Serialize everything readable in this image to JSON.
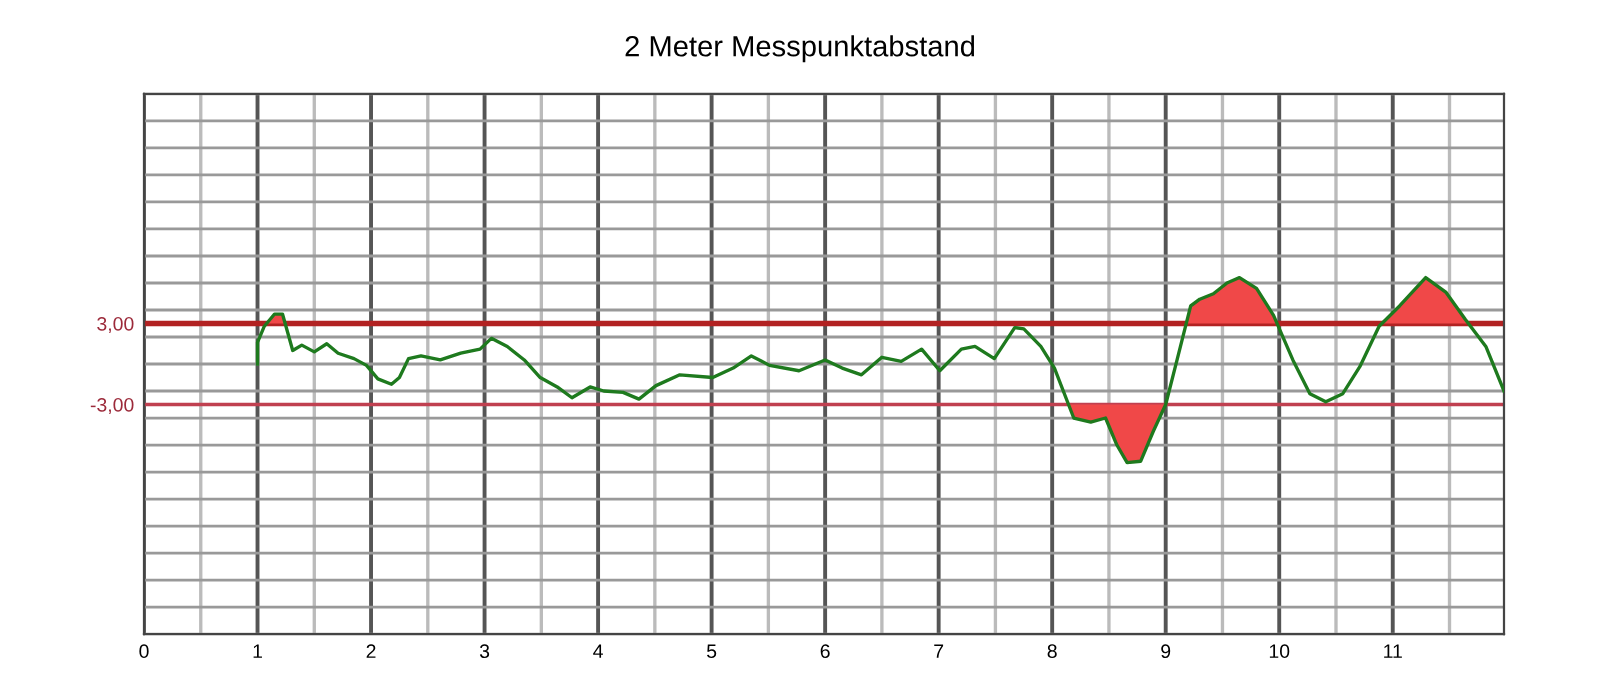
{
  "chart_data": {
    "type": "line",
    "title": "2 Meter Messpunktabstand",
    "series": [
      {
        "color": "#1e7a1e",
        "x": [
          1.0,
          1.0,
          1.06,
          1.15,
          1.22,
          1.31,
          1.39,
          1.5,
          1.61,
          1.71,
          1.85,
          1.96,
          2.06,
          2.18,
          2.25,
          2.33,
          2.44,
          2.61,
          2.79,
          2.96,
          3.06,
          3.2,
          3.35,
          3.49,
          3.64,
          3.77,
          3.93,
          4.05,
          4.22,
          4.36,
          4.51,
          4.72,
          5.01,
          5.19,
          5.35,
          5.51,
          5.77,
          6.0,
          6.15,
          6.32,
          6.5,
          6.67,
          6.85,
          7.01,
          7.2,
          7.32,
          7.49,
          7.67,
          7.75,
          7.9,
          8.02,
          8.19,
          8.34,
          8.47,
          8.57,
          8.66,
          8.78,
          8.89,
          9.0,
          9.1,
          9.22,
          9.3,
          9.42,
          9.54,
          9.65,
          9.8,
          9.95,
          10.12,
          10.27,
          10.41,
          10.56,
          10.71,
          10.88,
          11.06,
          11.29,
          11.47,
          11.64,
          11.82,
          11.98
        ],
        "values": [
          0,
          1.6,
          2.8,
          3.7,
          3.7,
          1.0,
          1.4,
          0.9,
          1.5,
          0.8,
          0.4,
          -0.1,
          -1.1,
          -1.5,
          -1.0,
          0.4,
          0.6,
          0.3,
          0.8,
          1.1,
          1.9,
          1.3,
          0.3,
          -1.0,
          -1.7,
          -2.5,
          -1.7,
          -2.0,
          -2.1,
          -2.6,
          -1.6,
          -0.8,
          -1.0,
          -0.3,
          0.6,
          -0.1,
          -0.5,
          0.3,
          -0.3,
          -0.8,
          0.5,
          0.2,
          1.1,
          -0.5,
          1.1,
          1.3,
          0.4,
          2.7,
          2.6,
          1.3,
          -0.3,
          -4.0,
          -4.3,
          -4.0,
          -6.0,
          -7.3,
          -7.2,
          -5.0,
          -3.0,
          0.3,
          4.3,
          4.8,
          5.2,
          6.0,
          6.4,
          5.6,
          3.6,
          0.3,
          -2.2,
          -2.8,
          -2.2,
          -0.2,
          2.8,
          4.3,
          6.4,
          5.3,
          3.3,
          1.3,
          -2.0
        ]
      }
    ],
    "xlim": [
      0,
      11.98
    ],
    "xticks": [
      0,
      {
        "value": 0.5,
        "label": null
      },
      1,
      {
        "value": 1.5,
        "label": null
      },
      2,
      {
        "value": 2.5,
        "label": null
      },
      3,
      {
        "value": 3.5,
        "label": null
      },
      4,
      {
        "value": 4.5,
        "label": null
      },
      5,
      {
        "value": 5.5,
        "label": null
      },
      6,
      {
        "value": 6.5,
        "label": null
      },
      7,
      {
        "value": 7.5,
        "label": null
      },
      8,
      {
        "value": 8.5,
        "label": null
      },
      9,
      {
        "value": 9.5,
        "label": null
      },
      10,
      {
        "value": 10.5,
        "label": null
      },
      11,
      {
        "value": 11.5,
        "label": null
      }
    ],
    "ylim": [
      -20,
      20
    ],
    "yticks": [
      {
        "value": -20,
        "label": null
      },
      {
        "value": -18,
        "label": null
      },
      {
        "value": -16,
        "label": null
      },
      {
        "value": -14,
        "label": null
      },
      {
        "value": -12,
        "label": null
      },
      {
        "value": -10,
        "label": null
      },
      {
        "value": -8,
        "label": null
      },
      {
        "value": -6,
        "label": null
      },
      {
        "value": -4,
        "label": null
      },
      {
        "value": -3,
        "label": "-3,00"
      },
      {
        "value": -2,
        "label": null
      },
      {
        "value": 0,
        "label": null
      },
      {
        "value": 2,
        "label": null
      },
      {
        "value": 3,
        "label": "3,00"
      },
      {
        "value": 4,
        "label": null
      },
      {
        "value": 6,
        "label": null
      },
      {
        "value": 8,
        "label": null
      },
      {
        "value": 10,
        "label": null
      },
      {
        "value": 12,
        "label": null
      },
      {
        "value": 14,
        "label": null
      },
      {
        "value": 16,
        "label": null
      },
      {
        "value": 18,
        "label": null
      },
      {
        "value": 20,
        "label": null
      }
    ],
    "ref_lines": [
      {
        "axis": "y",
        "value": 3,
        "color": "#b22222"
      },
      {
        "axis": "y",
        "value": -3,
        "color": "#c04050"
      }
    ],
    "grid": true,
    "marker": "none",
    "line_style": "solid"
  }
}
